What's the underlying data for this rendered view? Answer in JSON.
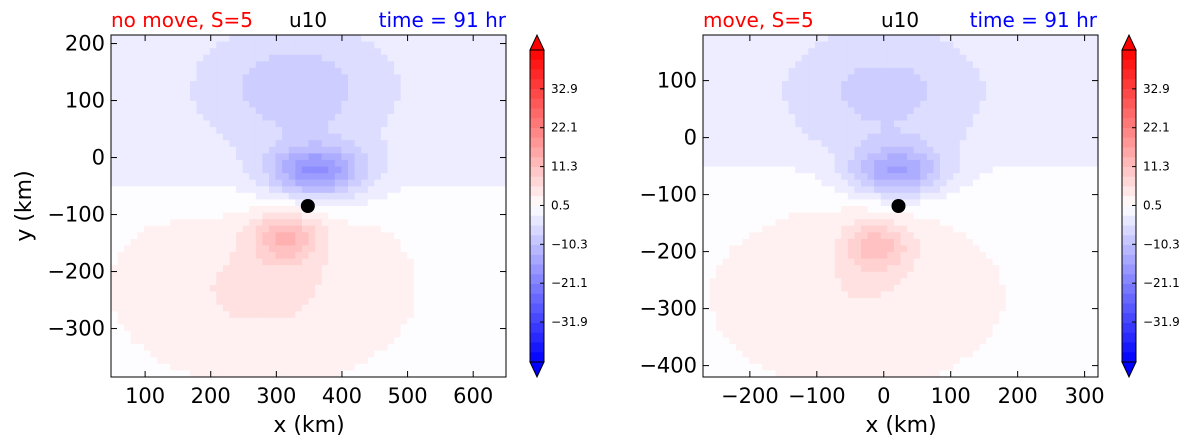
{
  "colorbar": {
    "tick_labels": [
      "32.9",
      "22.1",
      "11.3",
      "0.5",
      "−10.3",
      "−21.1",
      "−31.9"
    ],
    "tick_values": [
      32.9,
      22.1,
      11.3,
      0.5,
      -10.3,
      -21.1,
      -31.9
    ],
    "range": [
      -43,
      43.7
    ],
    "extend": "both",
    "colormap": "bwr"
  },
  "chart_data": [
    {
      "type": "heatmap",
      "title_left": "no move, S=5",
      "title_center": "u10",
      "title_right": "time = 91 hr",
      "title_left_color": "#ff0000",
      "title_right_color": "#0000ff",
      "xlabel": "x (km)",
      "ylabel": "y (km)",
      "xlim": [
        48,
        650
      ],
      "ylim": [
        -385,
        215
      ],
      "xticks": [
        100,
        200,
        300,
        400,
        500,
        600
      ],
      "xtick_labels": [
        "100",
        "200",
        "300",
        "400",
        "500",
        "600"
      ],
      "yticks": [
        200,
        100,
        0,
        -100,
        -200,
        -300
      ],
      "ytick_labels": [
        "200",
        "100",
        "0",
        "−100",
        "−200",
        "−300"
      ],
      "center": {
        "x": 348,
        "y": -85
      },
      "field": {
        "background": -3,
        "south_offset": 4,
        "features": [
          {
            "x": 360,
            "y": -25,
            "sx": 70,
            "sy": 45,
            "amp": -16
          },
          {
            "x": 330,
            "y": 120,
            "sx": 120,
            "sy": 90,
            "amp": -6
          },
          {
            "x": 315,
            "y": -140,
            "sx": 50,
            "sy": 45,
            "amp": 10
          },
          {
            "x": 280,
            "y": -230,
            "sx": 150,
            "sy": 110,
            "amp": 4
          }
        ]
      }
    },
    {
      "type": "heatmap",
      "title_left": "move, S=5",
      "title_center": "u10",
      "title_right": "time = 91 hr",
      "title_left_color": "#ff0000",
      "title_right_color": "#0000ff",
      "xlabel": "x (km)",
      "ylabel": "",
      "xlim": [
        -270,
        320
      ],
      "ylim": [
        -420,
        180
      ],
      "xticks": [
        -200,
        -100,
        0,
        100,
        200,
        300
      ],
      "xtick_labels": [
        "−200",
        "−100",
        "0",
        "100",
        "200",
        "300"
      ],
      "yticks": [
        100,
        0,
        -100,
        -200,
        -300,
        -400
      ],
      "ytick_labels": [
        "100",
        "0",
        "−100",
        "−200",
        "−300",
        "−400"
      ],
      "center": {
        "x": 22,
        "y": -120
      },
      "field": {
        "background": -3,
        "south_offset": 4,
        "features": [
          {
            "x": 20,
            "y": -60,
            "sx": 70,
            "sy": 45,
            "amp": -14
          },
          {
            "x": 0,
            "y": 80,
            "sx": 120,
            "sy": 90,
            "amp": -5
          },
          {
            "x": -10,
            "y": -190,
            "sx": 50,
            "sy": 45,
            "amp": 9
          },
          {
            "x": -40,
            "y": -280,
            "sx": 150,
            "sy": 110,
            "amp": 3
          }
        ]
      }
    }
  ]
}
